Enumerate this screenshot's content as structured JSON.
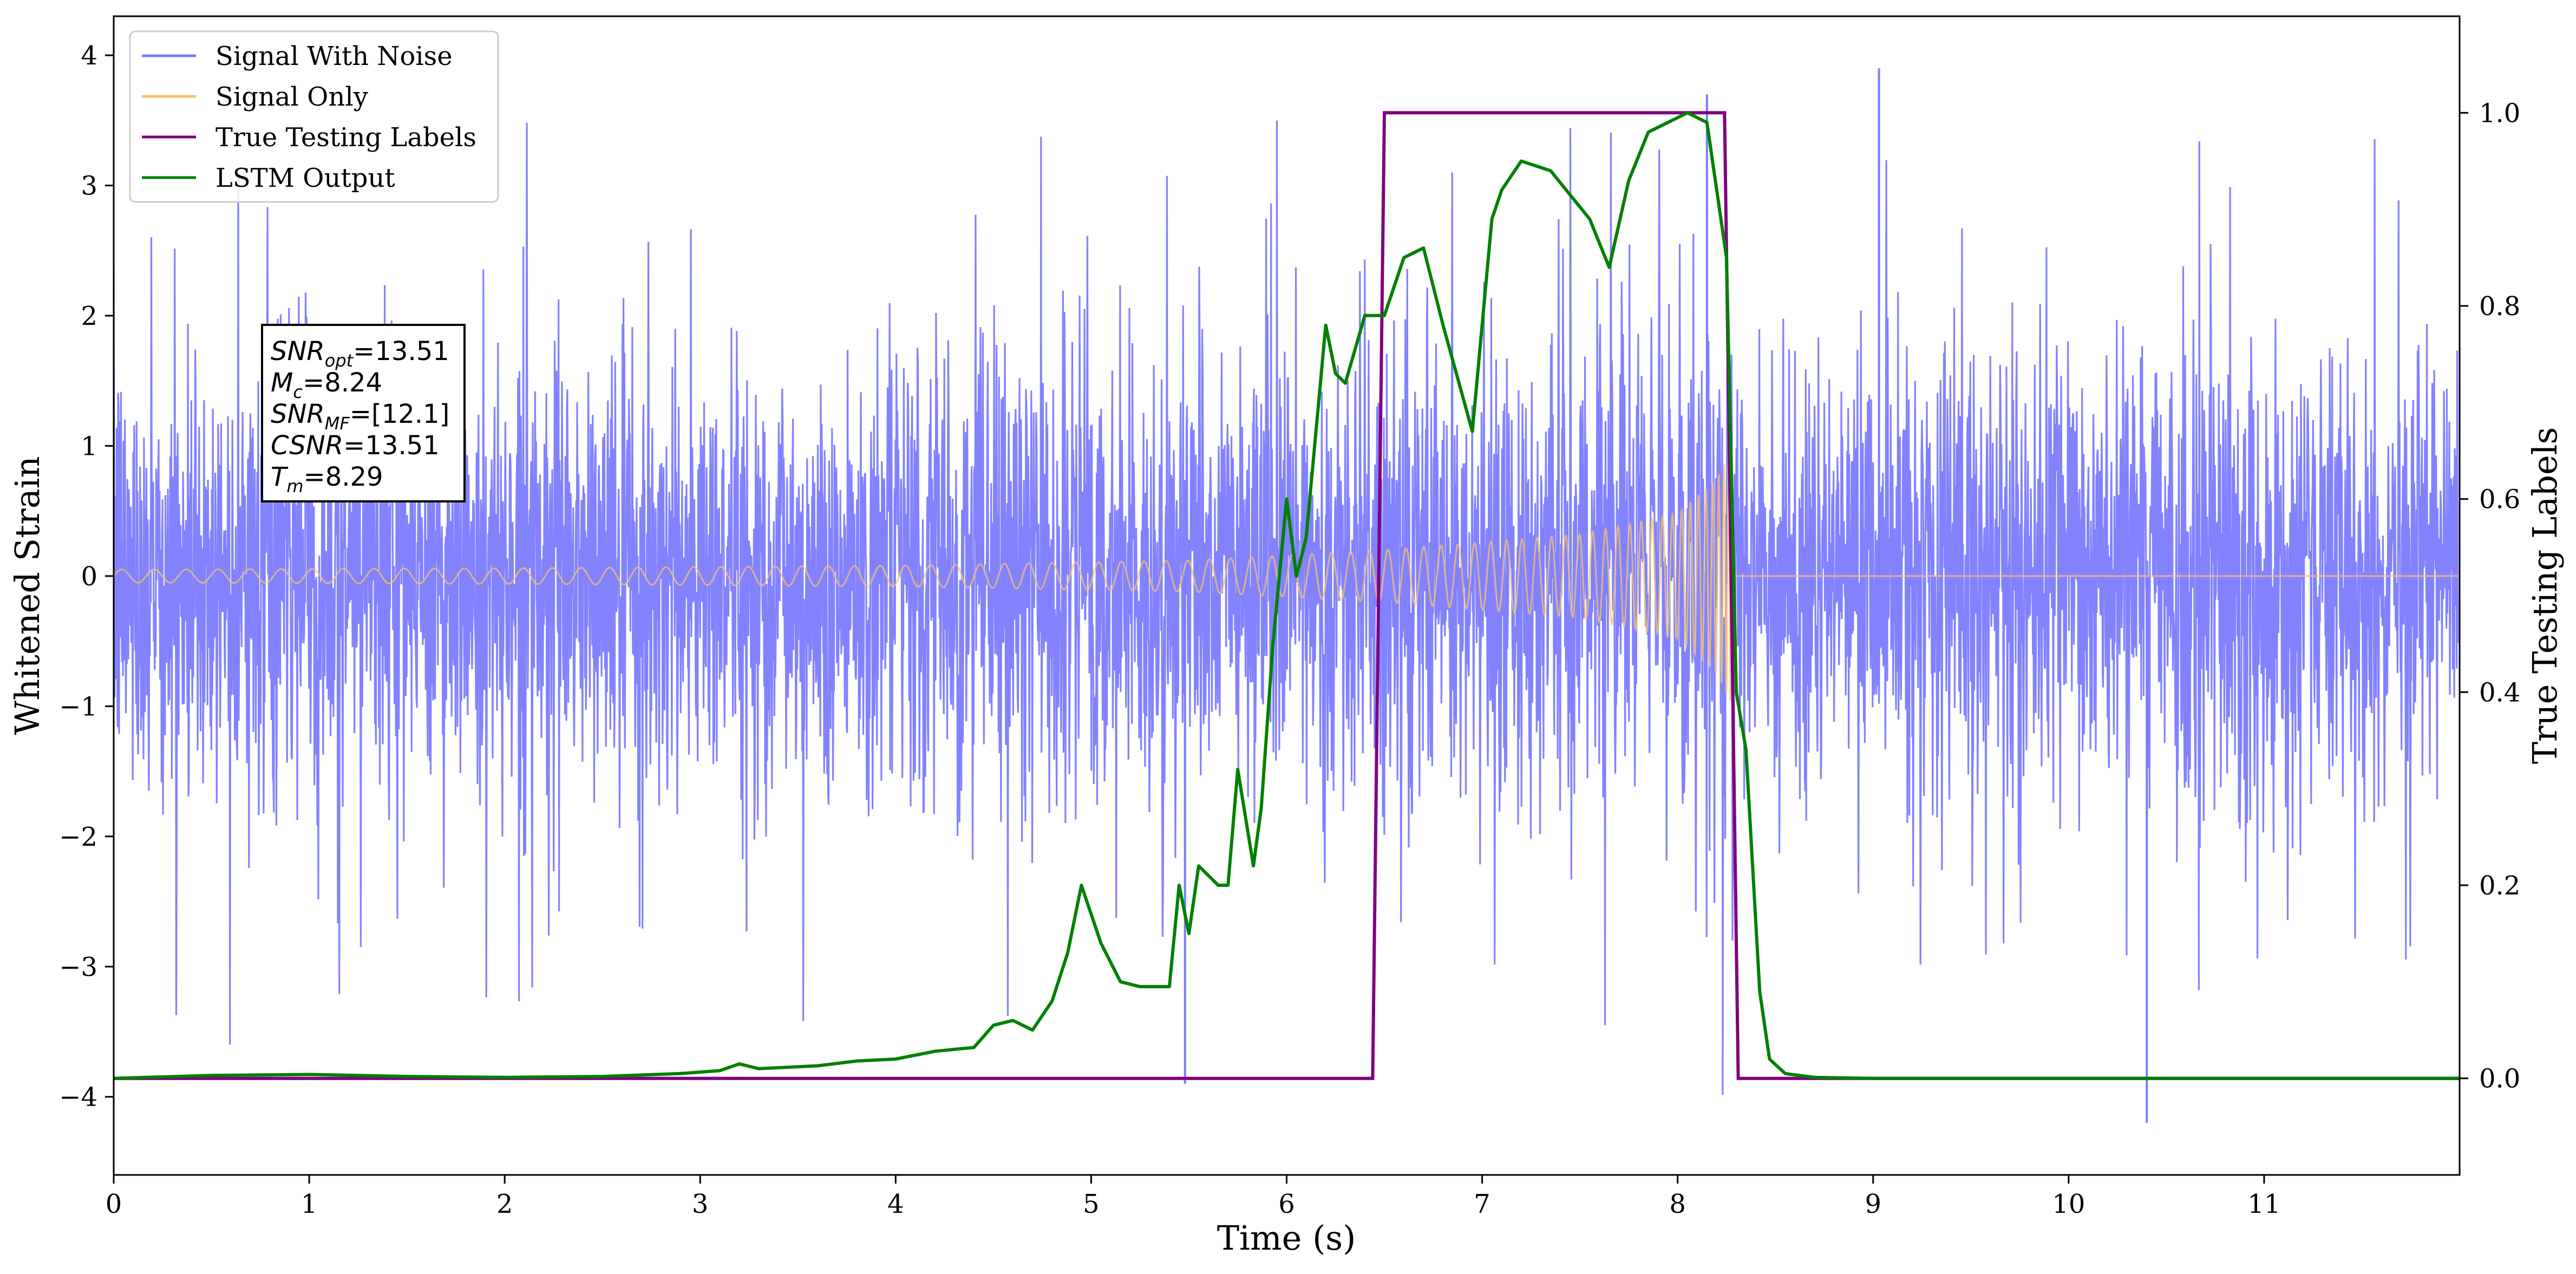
{
  "chart_data": {
    "type": "line",
    "xlabel": "Time (s)",
    "ylabel": "Whitened Strain",
    "y2label": "True Testing Labels",
    "xlim": [
      0,
      12
    ],
    "ylim": [
      -4.6,
      4.3
    ],
    "y2lim": [
      -0.1,
      1.1
    ],
    "xticks": [
      "0",
      "1",
      "2",
      "3",
      "4",
      "5",
      "6",
      "7",
      "8",
      "9",
      "10",
      "11"
    ],
    "yticks": [
      "−4",
      "−3",
      "−2",
      "−1",
      "0",
      "1",
      "2",
      "3",
      "4"
    ],
    "y2ticks": [
      "0.0",
      "0.2",
      "0.4",
      "0.6",
      "0.8",
      "1.0"
    ],
    "grid": false,
    "legend_placement": "top-left",
    "series": [
      {
        "name": "Signal With Noise",
        "color": "#7b7bff",
        "axis": "left",
        "description_stats": {
          "approx_band": [
            -2.0,
            2.0
          ],
          "notable_peaks": [
            {
              "x": 8.15,
              "y": 3.7
            },
            {
              "x": 9.03,
              "y": 3.9
            },
            {
              "x": 10.4,
              "y": -4.2
            },
            {
              "x": 5.48,
              "y": -3.9
            }
          ]
        }
      },
      {
        "name": "Signal Only",
        "color": "#f5c36b",
        "axis": "left",
        "amplitude_points": [
          [
            0,
            0.05
          ],
          [
            2,
            0.06
          ],
          [
            4,
            0.08
          ],
          [
            5.5,
            0.12
          ],
          [
            6.5,
            0.2
          ],
          [
            7.5,
            0.32
          ],
          [
            8.0,
            0.48
          ],
          [
            8.2,
            0.75
          ],
          [
            8.28,
            1.0
          ]
        ],
        "merge_time": 8.29
      },
      {
        "name": "True Testing Labels",
        "color": "#800080",
        "axis": "right",
        "x": [
          0,
          6.44,
          6.5,
          8.24,
          8.31,
          12
        ],
        "y": [
          0,
          0,
          1,
          1,
          0,
          0
        ]
      },
      {
        "name": "LSTM Output",
        "color": "#008000",
        "axis": "right",
        "x": [
          0,
          0.5,
          1.0,
          1.5,
          2.0,
          2.5,
          2.9,
          3.1,
          3.2,
          3.3,
          3.6,
          3.8,
          4.0,
          4.2,
          4.4,
          4.5,
          4.6,
          4.7,
          4.8,
          4.88,
          4.95,
          5.05,
          5.15,
          5.25,
          5.4,
          5.45,
          5.5,
          5.55,
          5.65,
          5.7,
          5.75,
          5.83,
          5.87,
          5.93,
          6.0,
          6.05,
          6.1,
          6.2,
          6.25,
          6.3,
          6.4,
          6.5,
          6.6,
          6.7,
          6.8,
          6.95,
          7.05,
          7.1,
          7.2,
          7.35,
          7.55,
          7.65,
          7.75,
          7.85,
          7.95,
          8.05,
          8.15,
          8.25,
          8.3,
          8.35,
          8.42,
          8.47,
          8.55,
          8.7,
          9.0,
          12
        ],
        "y": [
          0,
          0.003,
          0.004,
          0.002,
          0.001,
          0.002,
          0.005,
          0.008,
          0.015,
          0.01,
          0.013,
          0.018,
          0.02,
          0.028,
          0.032,
          0.055,
          0.06,
          0.05,
          0.08,
          0.13,
          0.2,
          0.14,
          0.1,
          0.095,
          0.095,
          0.2,
          0.15,
          0.22,
          0.2,
          0.2,
          0.32,
          0.22,
          0.28,
          0.45,
          0.6,
          0.52,
          0.56,
          0.78,
          0.73,
          0.72,
          0.79,
          0.79,
          0.85,
          0.86,
          0.78,
          0.67,
          0.89,
          0.92,
          0.95,
          0.94,
          0.89,
          0.84,
          0.93,
          0.98,
          0.99,
          1.0,
          0.99,
          0.85,
          0.4,
          0.34,
          0.09,
          0.02,
          0.005,
          0.001,
          0.0,
          0.0
        ]
      }
    ],
    "annotation": {
      "lines": [
        {
          "base": "SNR",
          "sub": "opt",
          "value": "=13.51"
        },
        {
          "base": "M",
          "sub": "c",
          "value": "=8.24"
        },
        {
          "base": "SNR",
          "sub": "MF",
          "value": "=[12.1]"
        },
        {
          "base": "CSNR",
          "sub": "",
          "value": "=13.51"
        },
        {
          "base": "T",
          "sub": "m",
          "value": "=8.29"
        }
      ]
    }
  }
}
